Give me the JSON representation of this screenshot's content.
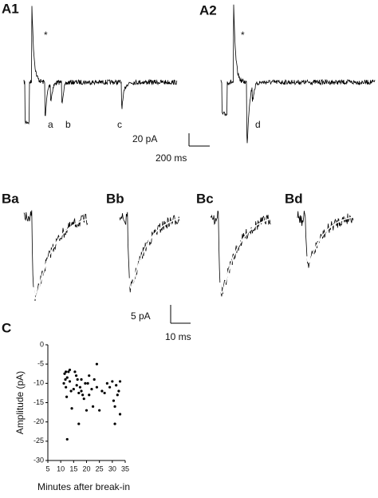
{
  "panels": {
    "a1": {
      "label": "A1",
      "star": "*",
      "events": [
        "a",
        "b",
        "c"
      ]
    },
    "a2": {
      "label": "A2",
      "star": "*",
      "events": [
        "d"
      ]
    },
    "a_scale": {
      "current": "20 pA",
      "time": "200 ms"
    },
    "b": {
      "labels": [
        "Ba",
        "Bb",
        "Bc",
        "Bd"
      ]
    },
    "b_scale": {
      "current": "5 pA",
      "time": "10 ms"
    },
    "c": {
      "label": "C"
    }
  },
  "chart_data": {
    "type": "scatter",
    "x_label": "Minutes after break-in",
    "y_label": "Amplitude (pA)",
    "x": [
      11.5,
      12,
      11.8,
      12.5,
      11.2,
      12,
      12.3,
      13,
      13.5,
      14,
      14.3,
      15,
      15.5,
      16,
      16.5,
      16.2,
      17,
      17.5,
      17,
      18,
      18,
      19,
      19.5,
      20,
      21,
      21,
      22,
      22.5,
      23,
      24,
      24,
      25,
      26,
      27,
      28,
      29,
      30,
      30.5,
      31,
      31,
      31.5,
      32,
      32.5,
      33,
      33,
      12.5,
      13.5,
      18.5,
      20.5
    ],
    "values": [
      -7.5,
      -7,
      -9,
      -8.5,
      -10,
      -11,
      -13.5,
      -7,
      -9.5,
      -12,
      -16.5,
      -11.5,
      -7,
      -8,
      -9,
      -10.5,
      -12.5,
      -11,
      -20.5,
      -9,
      -12,
      -14,
      -10,
      -17,
      -8,
      -13,
      -11.5,
      -16,
      -9,
      -5,
      -11,
      -17,
      -12,
      -12.5,
      -10,
      -11,
      -9.5,
      -14.5,
      -16,
      -20.5,
      -10.5,
      -13,
      -12,
      -18,
      -9.5,
      -24.5,
      -6.5,
      -13,
      -10
    ],
    "color": "#000000",
    "xlim": [
      5,
      35
    ],
    "xticks": [
      5,
      10,
      15,
      20,
      25,
      30,
      35
    ],
    "ylim": [
      -30,
      0
    ],
    "yticks": [
      0,
      -5,
      -10,
      -15,
      -20,
      -25,
      -30
    ]
  }
}
